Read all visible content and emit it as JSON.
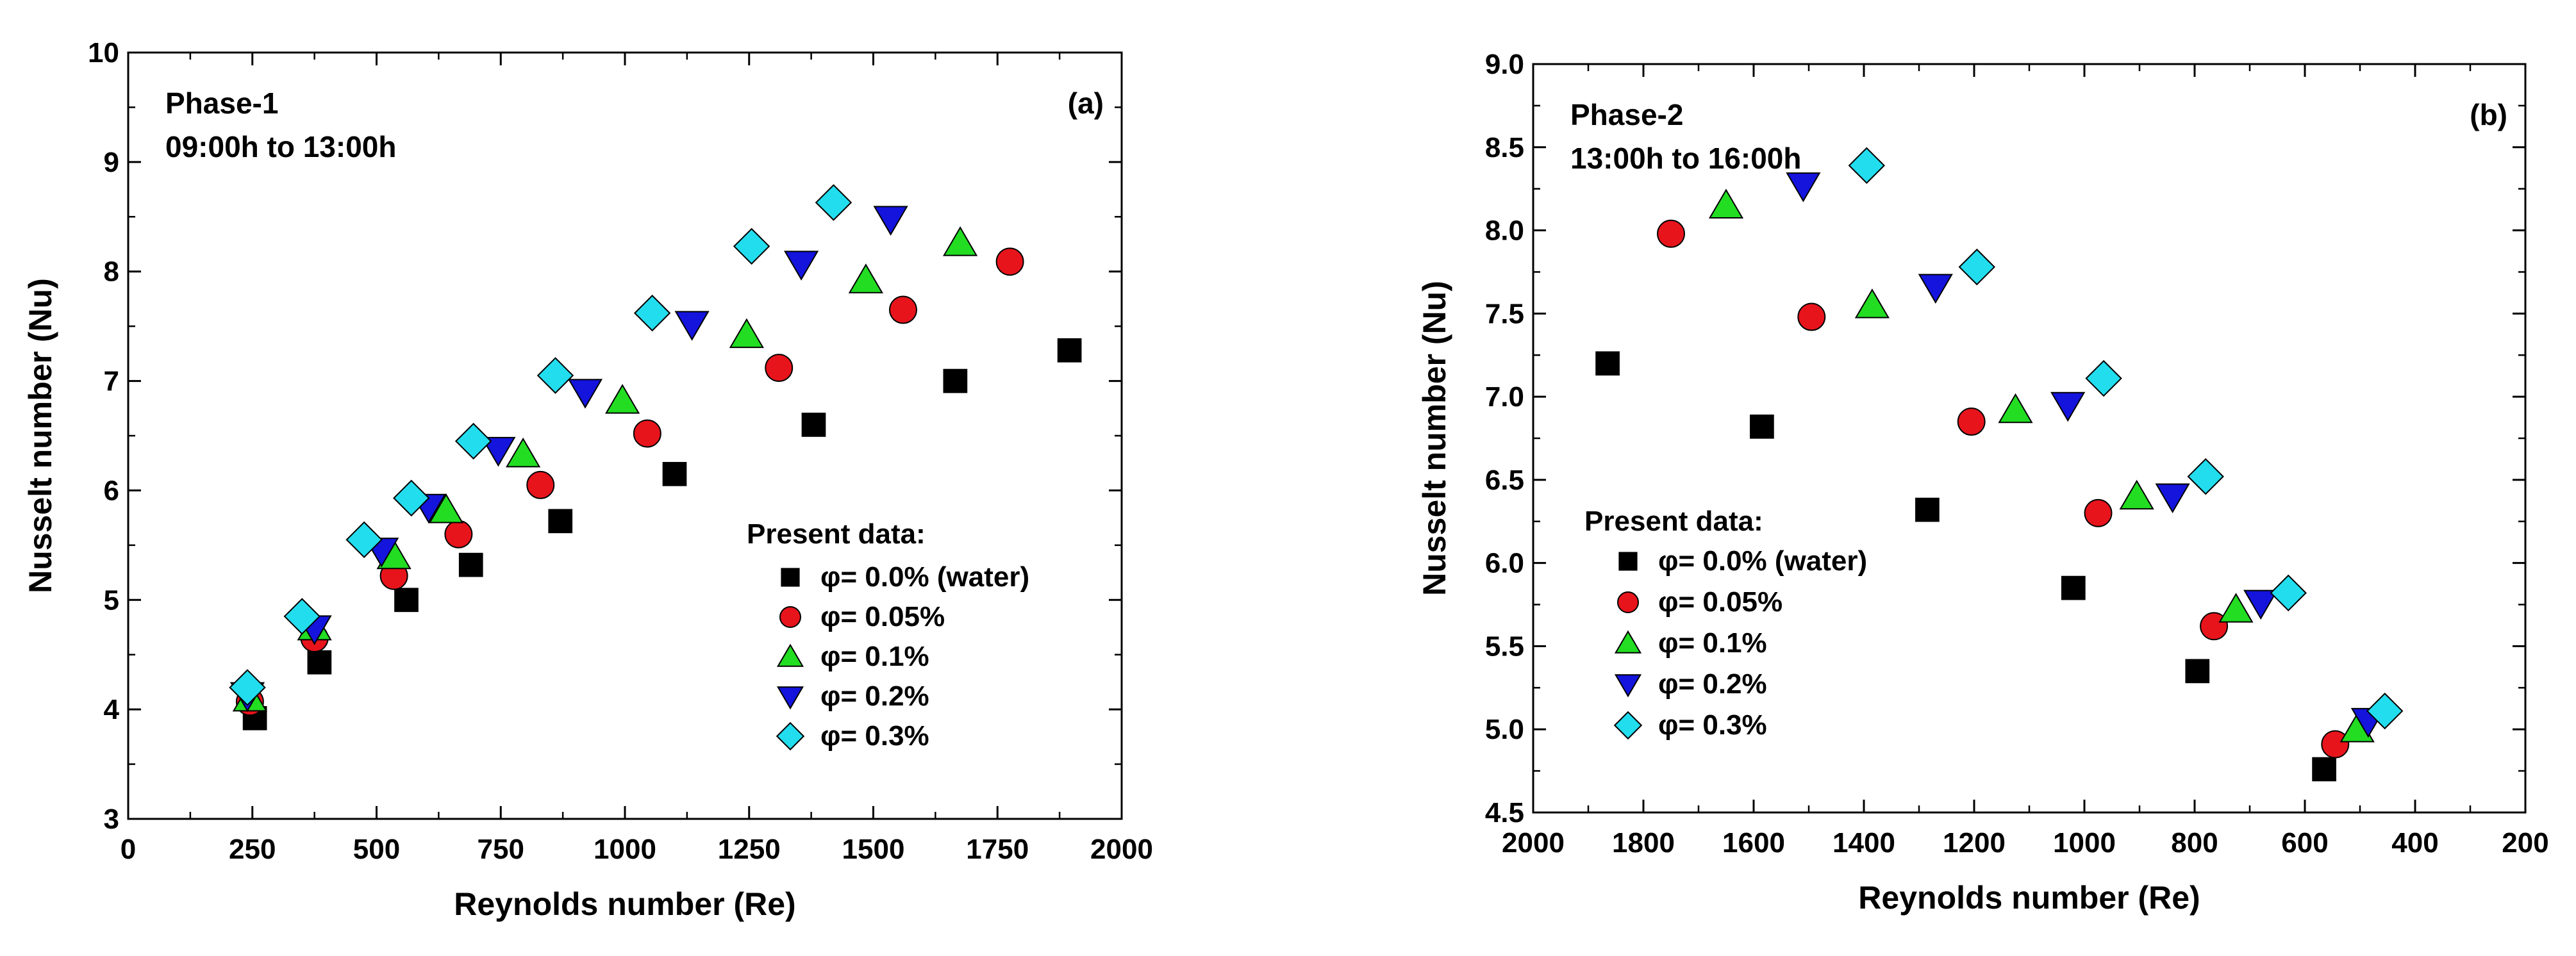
{
  "chart_data": [
    {
      "type": "scatter",
      "panel_label": "(a)",
      "phase_title": "Phase-1",
      "phase_subtitle": "09:00h to 13:00h",
      "xlabel": "Reynolds number (Re)",
      "ylabel": "Nusselt number (Nu)",
      "xlim": [
        0,
        2000
      ],
      "ylim": [
        3,
        10
      ],
      "xticks": [
        0,
        250,
        500,
        750,
        1000,
        1250,
        1500,
        1750,
        2000
      ],
      "xtick_labels": [
        "0",
        "250",
        "500",
        "750",
        "1000",
        "1250",
        "1500",
        "1750",
        "2000"
      ],
      "yticks": [
        3,
        4,
        5,
        6,
        7,
        8,
        9,
        10
      ],
      "ytick_labels": [
        "3",
        "4",
        "5",
        "6",
        "7",
        "8",
        "9",
        "10"
      ],
      "legend_title": "Present data:",
      "legend_position": "lower-right",
      "series": [
        {
          "name": "φ= 0.0% (water)",
          "marker": "square",
          "color": "#000000",
          "x": [
            255,
            385,
            560,
            690,
            870,
            1100,
            1380,
            1665,
            1895
          ],
          "y": [
            3.92,
            4.43,
            5.0,
            5.32,
            5.72,
            6.15,
            6.6,
            7.0,
            7.28
          ]
        },
        {
          "name": "φ= 0.05%",
          "marker": "circle",
          "color": "#e8141c",
          "x": [
            245,
            375,
            535,
            665,
            830,
            1045,
            1310,
            1560,
            1775
          ],
          "y": [
            4.07,
            4.65,
            5.22,
            5.6,
            6.05,
            6.52,
            7.12,
            7.65,
            8.09
          ]
        },
        {
          "name": "φ= 0.1%",
          "marker": "triangle-up",
          "color": "#22dd22",
          "x": [
            245,
            375,
            535,
            640,
            795,
            995,
            1245,
            1485,
            1675
          ],
          "y": [
            4.1,
            4.75,
            5.4,
            5.82,
            6.33,
            6.82,
            7.42,
            7.92,
            8.26
          ]
        },
        {
          "name": "φ= 0.2%",
          "marker": "triangle-down",
          "color": "#1414dd",
          "x": [
            240,
            375,
            510,
            605,
            745,
            920,
            1135,
            1355,
            1535
          ],
          "y": [
            4.13,
            4.74,
            5.45,
            5.85,
            6.37,
            6.9,
            7.52,
            8.07,
            8.48
          ]
        },
        {
          "name": "φ= 0.3%",
          "marker": "diamond",
          "color": "#22ddee",
          "x": [
            240,
            350,
            475,
            570,
            695,
            860,
            1055,
            1255,
            1420
          ],
          "y": [
            4.2,
            4.85,
            5.55,
            5.93,
            6.45,
            7.05,
            7.62,
            8.23,
            8.63
          ]
        }
      ]
    },
    {
      "type": "scatter",
      "panel_label": "(b)",
      "phase_title": "Phase-2",
      "phase_subtitle": "13:00h to 16:00h",
      "xlabel": "Reynolds number (Re)",
      "ylabel": "Nusselt number (Nu)",
      "xlim": [
        2000,
        200
      ],
      "ylim": [
        4.5,
        9.0
      ],
      "xticks": [
        2000,
        1800,
        1600,
        1400,
        1200,
        1000,
        800,
        600,
        400,
        200
      ],
      "xtick_labels": [
        "2000",
        "1800",
        "1600",
        "1400",
        "1200",
        "1000",
        "800",
        "600",
        "400",
        "200"
      ],
      "yticks": [
        4.5,
        5.0,
        5.5,
        6.0,
        6.5,
        7.0,
        7.5,
        8.0,
        8.5,
        9.0
      ],
      "ytick_labels": [
        "4.5",
        "5.0",
        "5.5",
        "6.0",
        "6.5",
        "7.0",
        "7.5",
        "8.0",
        "8.5",
        "9.0"
      ],
      "legend_title": "Present data:",
      "legend_position": "lower-left",
      "series": [
        {
          "name": "φ= 0.0% (water)",
          "marker": "square",
          "color": "#000000",
          "x": [
            1865,
            1585,
            1285,
            1020,
            795,
            565
          ],
          "y": [
            7.2,
            6.82,
            6.32,
            5.85,
            5.35,
            4.76
          ]
        },
        {
          "name": "φ= 0.05%",
          "marker": "circle",
          "color": "#e8141c",
          "x": [
            1750,
            1495,
            1205,
            975,
            765,
            545
          ],
          "y": [
            7.98,
            7.48,
            6.85,
            6.3,
            5.62,
            4.91
          ]
        },
        {
          "name": "φ= 0.1%",
          "marker": "triangle-up",
          "color": "#22dd22",
          "x": [
            1650,
            1385,
            1125,
            905,
            725,
            505
          ],
          "y": [
            8.15,
            7.55,
            6.92,
            6.4,
            5.72,
            5.0
          ]
        },
        {
          "name": "φ= 0.2%",
          "marker": "triangle-down",
          "color": "#1414dd",
          "x": [
            1510,
            1270,
            1030,
            840,
            680,
            485
          ],
          "y": [
            8.27,
            7.66,
            6.95,
            6.4,
            5.76,
            5.05
          ]
        },
        {
          "name": "φ= 0.3%",
          "marker": "diamond",
          "color": "#22ddee",
          "x": [
            1395,
            1195,
            965,
            780,
            630,
            455
          ],
          "y": [
            8.39,
            7.78,
            7.11,
            6.52,
            5.82,
            5.11
          ]
        }
      ]
    }
  ]
}
